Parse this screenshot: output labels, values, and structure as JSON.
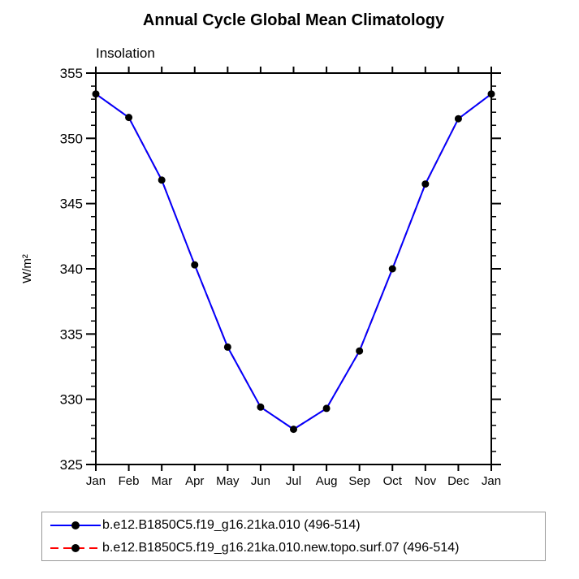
{
  "title": "Annual Cycle Global Mean Climatology",
  "subtitle": "Insolation",
  "chart_data": {
    "type": "line",
    "categories": [
      "Jan",
      "Feb",
      "Mar",
      "Apr",
      "May",
      "Jun",
      "Jul",
      "Aug",
      "Sep",
      "Oct",
      "Nov",
      "Dec",
      "Jan"
    ],
    "series": [
      {
        "name": "b.e12.B1850C5.f19_g16.21ka.010 (496-514)",
        "color": "#0000ff",
        "line_style": "solid",
        "marker": "filled-circle",
        "marker_color": "#000000",
        "values": [
          353.4,
          351.6,
          346.8,
          340.3,
          334.0,
          329.4,
          327.7,
          329.3,
          333.7,
          340.0,
          346.5,
          351.5,
          353.4
        ]
      },
      {
        "name": "b.e12.B1850C5.f19_g16.21ka.010.new.topo.surf.07 (496-514)",
        "color": "#ff0000",
        "line_style": "dashed",
        "marker": "filled-circle",
        "marker_color": "#000000",
        "values": [
          353.4,
          351.6,
          346.8,
          340.3,
          334.0,
          329.4,
          327.7,
          329.3,
          333.7,
          340.0,
          346.5,
          351.5,
          353.4
        ],
        "note": "overlaps series 1 exactly; hidden beneath the blue solid line in plot area"
      }
    ],
    "xlabel": "",
    "ylabel": "W/m²",
    "ylim": [
      325,
      355
    ],
    "yticks": [
      325,
      330,
      335,
      340,
      345,
      350,
      355
    ],
    "y_minor_tick_interval": 1,
    "grid": false,
    "legend_position": "bottom-left",
    "frame_color": "#000000",
    "background_color": "#ffffff"
  }
}
